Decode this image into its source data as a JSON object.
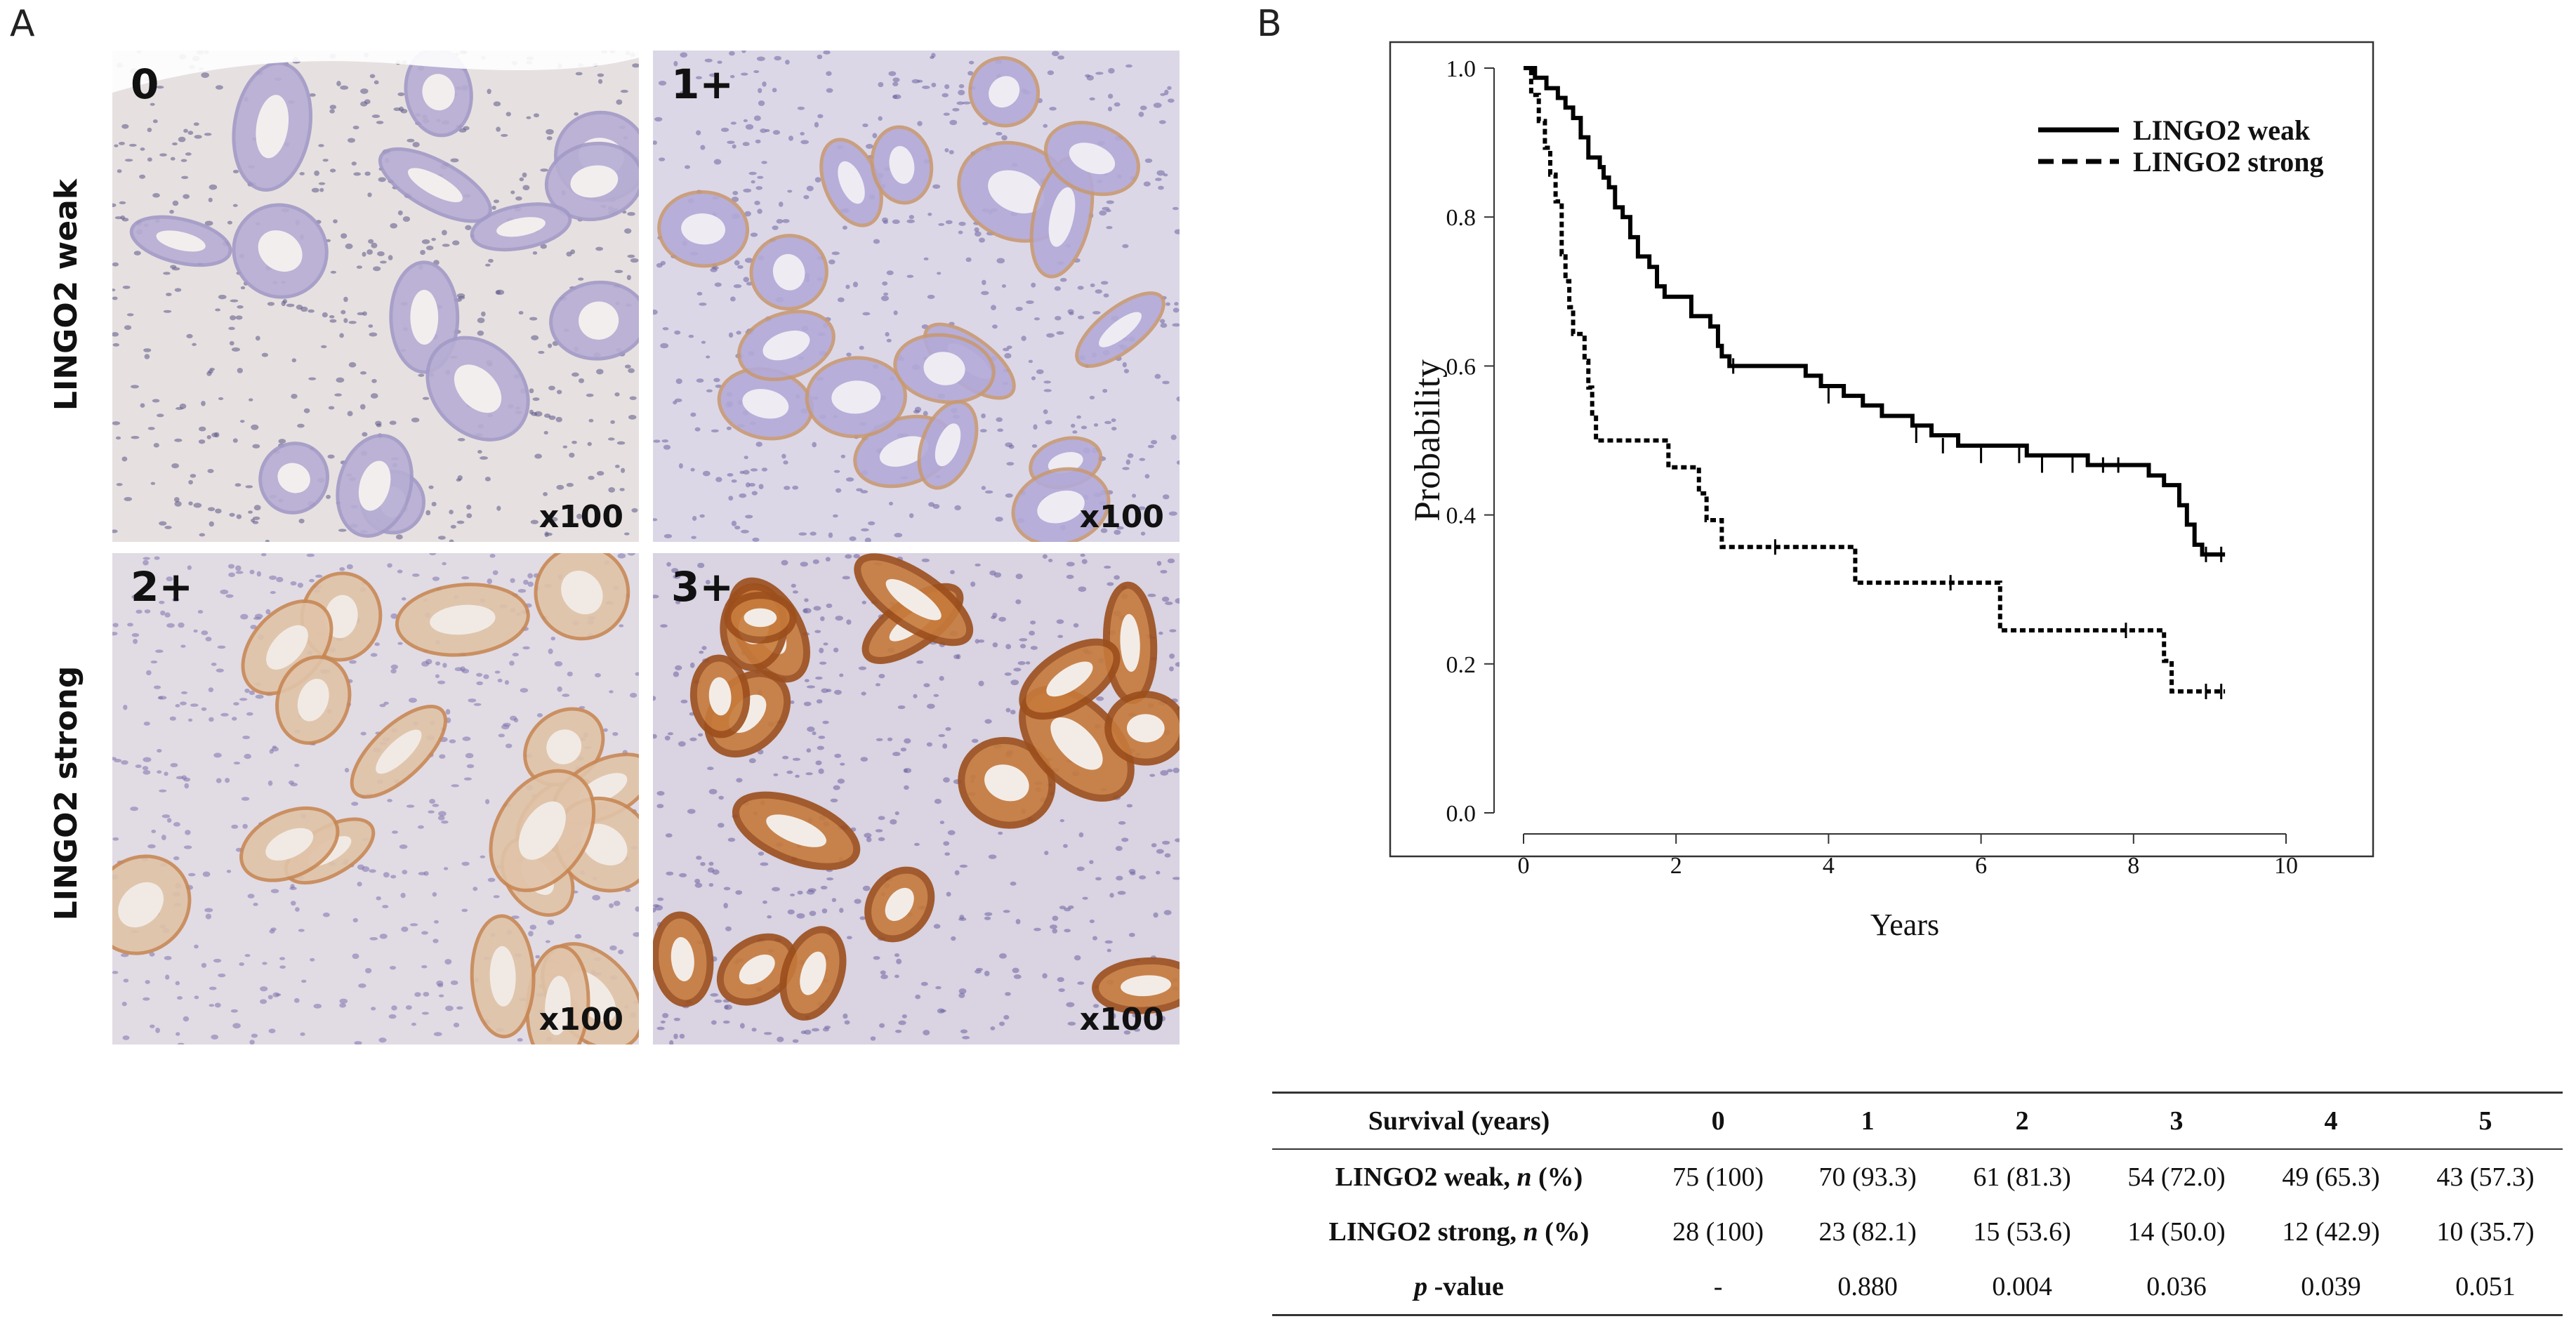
{
  "panel_a": {
    "letter": "A",
    "row_labels": [
      "LINGO2 weak",
      "LINGO2 strong"
    ],
    "images": [
      {
        "score": "0",
        "magnification": "x100",
        "stain": "negative"
      },
      {
        "score": "1+",
        "magnification": "x100",
        "stain": "weak"
      },
      {
        "score": "2+",
        "magnification": "x100",
        "stain": "moderate"
      },
      {
        "score": "3+",
        "magnification": "x100",
        "stain": "strong"
      }
    ]
  },
  "panel_b": {
    "letter": "B"
  },
  "chart_data": {
    "type": "line",
    "xlabel": "Years",
    "ylabel": "Probability",
    "xlim": [
      0,
      10
    ],
    "ylim": [
      0,
      1.0
    ],
    "x_ticks": [
      "0",
      "2",
      "4",
      "6",
      "8",
      "10"
    ],
    "y_ticks": [
      "0.0",
      "0.2",
      "0.4",
      "0.6",
      "0.8",
      "1.0"
    ],
    "legend_position": "top-right",
    "series": [
      {
        "name": "LINGO2 weak",
        "style": "solid",
        "points": [
          [
            0,
            1.0
          ],
          [
            0.15,
            0.987
          ],
          [
            0.3,
            0.973
          ],
          [
            0.45,
            0.96
          ],
          [
            0.55,
            0.947
          ],
          [
            0.65,
            0.933
          ],
          [
            0.75,
            0.907
          ],
          [
            0.85,
            0.88
          ],
          [
            1.0,
            0.867
          ],
          [
            1.05,
            0.853
          ],
          [
            1.12,
            0.84
          ],
          [
            1.2,
            0.813
          ],
          [
            1.3,
            0.8
          ],
          [
            1.4,
            0.773
          ],
          [
            1.5,
            0.747
          ],
          [
            1.65,
            0.733
          ],
          [
            1.75,
            0.707
          ],
          [
            1.85,
            0.693
          ],
          [
            2.2,
            0.667
          ],
          [
            2.45,
            0.653
          ],
          [
            2.55,
            0.627
          ],
          [
            2.6,
            0.613
          ],
          [
            2.7,
            0.6
          ],
          [
            3.7,
            0.587
          ],
          [
            3.9,
            0.573
          ],
          [
            4.2,
            0.56
          ],
          [
            4.45,
            0.547
          ],
          [
            4.7,
            0.533
          ],
          [
            5.1,
            0.52
          ],
          [
            5.35,
            0.507
          ],
          [
            5.7,
            0.493
          ],
          [
            6.6,
            0.48
          ],
          [
            7.4,
            0.467
          ],
          [
            8.2,
            0.453
          ],
          [
            8.4,
            0.44
          ],
          [
            8.6,
            0.413
          ],
          [
            8.7,
            0.387
          ],
          [
            8.8,
            0.36
          ],
          [
            8.9,
            0.347
          ],
          [
            9.2,
            0.347
          ]
        ],
        "censored": [
          [
            2.75,
            0.6
          ],
          [
            4.0,
            0.56
          ],
          [
            5.15,
            0.507
          ],
          [
            5.5,
            0.493
          ],
          [
            6.0,
            0.48
          ],
          [
            6.5,
            0.48
          ],
          [
            6.8,
            0.467
          ],
          [
            7.2,
            0.467
          ],
          [
            7.6,
            0.467
          ],
          [
            7.8,
            0.467
          ],
          [
            8.95,
            0.347
          ],
          [
            9.15,
            0.347
          ]
        ]
      },
      {
        "name": "LINGO2 strong",
        "style": "dashed",
        "points": [
          [
            0,
            1.0
          ],
          [
            0.1,
            0.964
          ],
          [
            0.2,
            0.929
          ],
          [
            0.28,
            0.893
          ],
          [
            0.35,
            0.857
          ],
          [
            0.42,
            0.821
          ],
          [
            0.5,
            0.75
          ],
          [
            0.55,
            0.714
          ],
          [
            0.6,
            0.679
          ],
          [
            0.65,
            0.643
          ],
          [
            0.8,
            0.607
          ],
          [
            0.85,
            0.571
          ],
          [
            0.9,
            0.536
          ],
          [
            0.95,
            0.5
          ],
          [
            1.9,
            0.464
          ],
          [
            2.3,
            0.429
          ],
          [
            2.4,
            0.393
          ],
          [
            2.6,
            0.357
          ],
          [
            4.35,
            0.309
          ],
          [
            6.25,
            0.245
          ],
          [
            8.4,
            0.204
          ],
          [
            8.5,
            0.163
          ],
          [
            9.2,
            0.163
          ]
        ],
        "censored": [
          [
            3.3,
            0.357
          ],
          [
            5.6,
            0.309
          ],
          [
            7.9,
            0.245
          ],
          [
            8.95,
            0.163
          ],
          [
            9.15,
            0.163
          ]
        ]
      }
    ]
  },
  "survival_table": {
    "header": [
      "Survival (years)",
      "0",
      "1",
      "2",
      "3",
      "4",
      "5"
    ],
    "rows": [
      {
        "label_main": "LINGO2 weak, ",
        "label_n": "n",
        "label_pct": " (%)",
        "values": [
          "75 (100)",
          "70 (93.3)",
          "61 (81.3)",
          "54 (72.0)",
          "49 (65.3)",
          "43 (57.3)"
        ]
      },
      {
        "label_main": "LINGO2 strong, ",
        "label_n": "n",
        "label_pct": " (%)",
        "values": [
          "28 (100)",
          "23 (82.1)",
          "15 (53.6)",
          "14 (50.0)",
          "12 (42.9)",
          "10 (35.7)"
        ]
      },
      {
        "label_main": "",
        "label_n": "p",
        "label_pct": " -value",
        "values": [
          "-",
          "0.880",
          "0.004",
          "0.036",
          "0.039",
          "0.051"
        ]
      }
    ]
  }
}
